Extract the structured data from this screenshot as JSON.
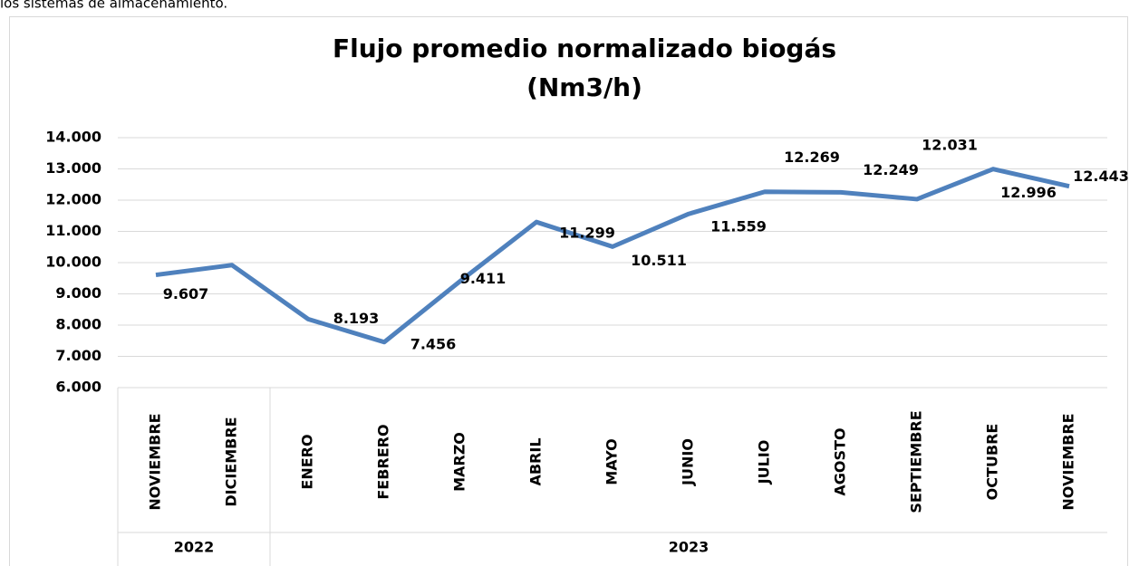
{
  "caption": "los sistemas de almacenamiento.",
  "chart_data": {
    "type": "line",
    "title": [
      "Flujo promedio normalizado biogás",
      "(Nm3/h)"
    ],
    "categories": [
      "NOVIEMBRE",
      "DICIEMBRE",
      "ENERO",
      "FEBRERO",
      "MARZO",
      "ABRIL",
      "MAYO",
      "JUNIO",
      "JULIO",
      "AGOSTO",
      "SEPTIEMBRE",
      "OCTUBRE",
      "NOVIEMBRE"
    ],
    "groups": [
      {
        "label": "2022",
        "count": 2
      },
      {
        "label": "2023",
        "count": 11
      }
    ],
    "series": [
      {
        "name": "Flujo",
        "color": "#4f81bd",
        "values": [
          9607,
          9920,
          8193,
          7456,
          9411,
          11299,
          10511,
          11559,
          12269,
          12249,
          12031,
          12996,
          12443
        ],
        "value_labels": [
          "9.607",
          null,
          "8.193",
          "7.456",
          "9.411",
          "11.299",
          "10.511",
          "11.559",
          "12.269",
          "12.249",
          "12.031",
          "12.996",
          "12.443"
        ]
      }
    ],
    "ylim": [
      6000,
      14000
    ],
    "yticks": [
      {
        "value": 6000,
        "label": "6.000"
      },
      {
        "value": 7000,
        "label": "7.000"
      },
      {
        "value": 8000,
        "label": "8.000"
      },
      {
        "value": 9000,
        "label": "9.000"
      },
      {
        "value": 10000,
        "label": "10.000"
      },
      {
        "value": 11000,
        "label": "11.000"
      },
      {
        "value": 12000,
        "label": "12.000"
      },
      {
        "value": 13000,
        "label": "13.000"
      },
      {
        "value": 14000,
        "label": "14.000"
      }
    ],
    "grid": true
  }
}
